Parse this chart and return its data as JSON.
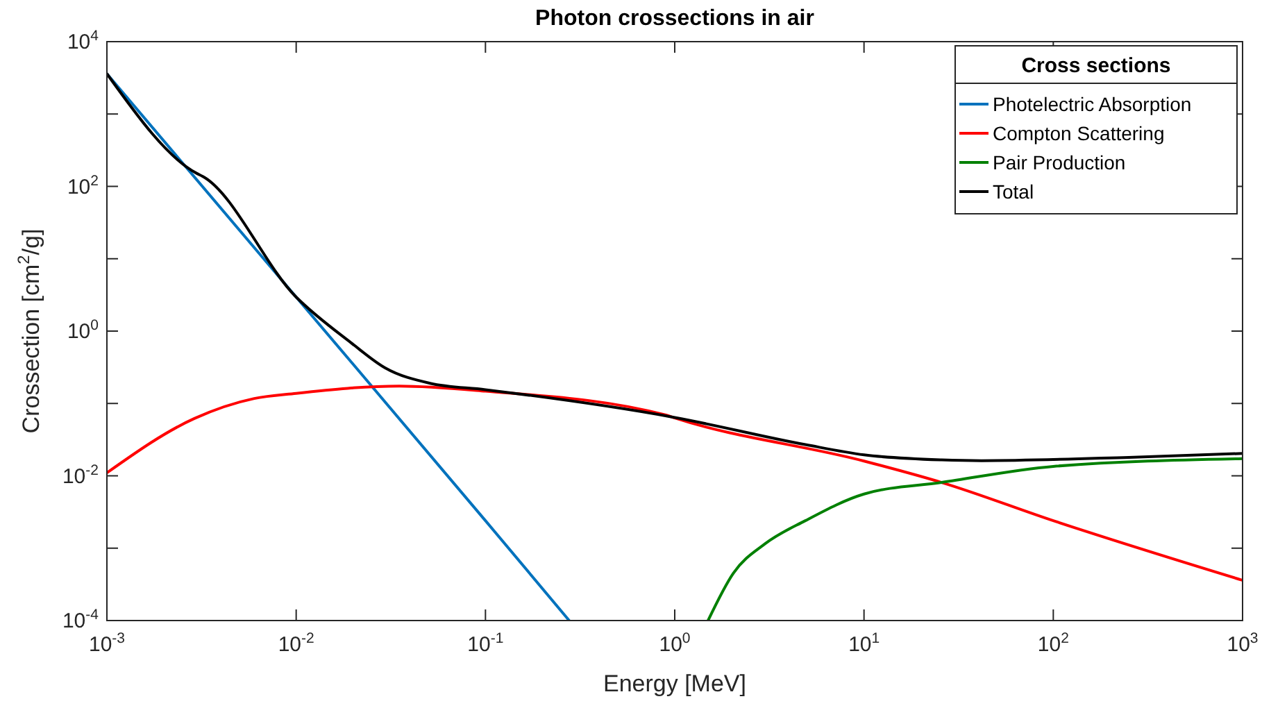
{
  "chart_data": {
    "type": "line",
    "title": "Photon crossections in air",
    "xlabel": "Energy [MeV]",
    "ylabel": "Crossection [cm$^{2}$/g]",
    "legend_title": "Cross sections",
    "log": "xy",
    "grid": false,
    "legend": "top right",
    "line_style": "solid",
    "marker": "none",
    "xlim": [
      0.001,
      1000
    ],
    "ylim": [
      0.0001,
      10000
    ],
    "xticks": [
      {
        "value": 0.001,
        "label": "10$^{-3}$"
      },
      {
        "value": 0.01,
        "label": "10$^{-2}$"
      },
      {
        "value": 0.1,
        "label": "10$^{-1}$"
      },
      {
        "value": 1,
        "label": "10$^{0}$"
      },
      {
        "value": 10,
        "label": "10$^{1}$"
      },
      {
        "value": 100,
        "label": "10$^{2}$"
      },
      {
        "value": 1000,
        "label": "10$^{3}$"
      }
    ],
    "yticks": [
      {
        "value": 0.0001,
        "label": "10$^{-4}$"
      },
      {
        "value": 0.001,
        "label": null
      },
      {
        "value": 0.01,
        "label": "10$^{-2}$"
      },
      {
        "value": 0.1,
        "label": null
      },
      {
        "value": 1,
        "label": "10$^{0}$"
      },
      {
        "value": 10,
        "label": null
      },
      {
        "value": 100,
        "label": "10$^{2}$"
      },
      {
        "value": 1000,
        "label": null
      },
      {
        "value": 10000,
        "label": "10$^{4}$"
      }
    ],
    "series": [
      {
        "name": "Photelectric Absorption",
        "color": "#0072bd",
        "x": [
          0.001,
          0.01,
          0.1,
          0.277
        ],
        "values": [
          3600,
          2.95,
          0.0024,
          0.0001
        ]
      },
      {
        "name": "Compton Scattering",
        "color": "#ff0000",
        "x": [
          0.001,
          0.0029,
          0.006,
          0.01,
          0.035,
          0.1,
          0.9,
          1,
          10,
          25.7,
          100,
          1000
        ],
        "values": [
          0.011,
          0.062,
          0.117,
          0.138,
          0.174,
          0.148,
          0.069,
          0.063,
          0.016,
          0.0081,
          0.0024,
          0.00036
        ]
      },
      {
        "name": "Pair Production",
        "color": "#008000",
        "x": [
          1.5,
          2.04,
          3,
          4.9,
          10,
          25.7,
          100,
          1000
        ],
        "values": [
          0.0001,
          0.00045,
          0.00115,
          0.0024,
          0.0056,
          0.0081,
          0.0135,
          0.0173
        ]
      },
      {
        "name": "Total",
        "color": "#000000",
        "x": [
          0.001,
          0.003,
          0.0032,
          0.01,
          0.0195,
          0.0295,
          0.051,
          0.1,
          1,
          4.9,
          10,
          25.7,
          41.7,
          250,
          1000
        ],
        "values": [
          3600,
          150,
          138,
          2.95,
          0.69,
          0.31,
          0.19,
          0.155,
          0.064,
          0.027,
          0.0195,
          0.0166,
          0.0162,
          0.018,
          0.0204
        ]
      }
    ]
  }
}
